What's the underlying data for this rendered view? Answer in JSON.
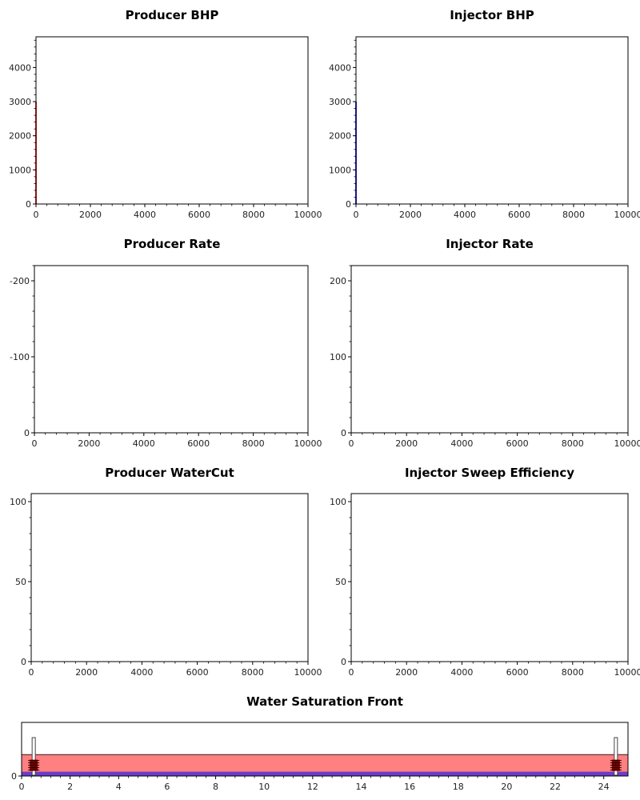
{
  "chart_data": [
    {
      "type": "line",
      "title": "Producer BHP",
      "xlim": [
        0,
        10000
      ],
      "ylim": [
        0,
        4900
      ],
      "xticks": [
        0,
        2000,
        4000,
        6000,
        8000,
        10000
      ],
      "xtick_labels": [
        "0",
        "2000",
        "4000",
        "6000",
        "8000",
        "10000"
      ],
      "yticks": [
        0,
        1000,
        2000,
        3000,
        4000
      ],
      "ytick_labels": [
        "0",
        "1000",
        "2000",
        "3000",
        "4000"
      ],
      "series": [
        {
          "color": "#ff0000",
          "x": [
            0,
            0
          ],
          "y": [
            0,
            3000
          ]
        }
      ]
    },
    {
      "type": "line",
      "title": "Injector BHP",
      "xlim": [
        0,
        10000
      ],
      "ylim": [
        0,
        4900
      ],
      "xticks": [
        0,
        2000,
        4000,
        6000,
        8000,
        10000
      ],
      "xtick_labels": [
        "0",
        "2000",
        "4000",
        "6000",
        "8000",
        "10000"
      ],
      "yticks": [
        0,
        1000,
        2000,
        3000,
        4000
      ],
      "ytick_labels": [
        "0",
        "1000",
        "2000",
        "3000",
        "4000"
      ],
      "series": [
        {
          "color": "#0000ff",
          "x": [
            0,
            0
          ],
          "y": [
            0,
            3000
          ]
        }
      ]
    },
    {
      "type": "line",
      "title": "Producer Rate",
      "xlim": [
        0,
        10000
      ],
      "ylim": [
        0,
        -220
      ],
      "xticks": [
        0,
        2000,
        4000,
        6000,
        8000,
        10000
      ],
      "xtick_labels": [
        "0",
        "2000",
        "4000",
        "6000",
        "8000",
        "10000"
      ],
      "yticks": [
        0,
        -100,
        -200
      ],
      "ytick_labels": [
        "0",
        "-100",
        "-200"
      ],
      "series": []
    },
    {
      "type": "line",
      "title": "Injector Rate",
      "xlim": [
        0,
        10000
      ],
      "ylim": [
        0,
        220
      ],
      "xticks": [
        0,
        2000,
        4000,
        6000,
        8000,
        10000
      ],
      "xtick_labels": [
        "0",
        "2000",
        "4000",
        "6000",
        "8000",
        "10000"
      ],
      "yticks": [
        0,
        100,
        200
      ],
      "ytick_labels": [
        "0",
        "100",
        "200"
      ],
      "series": []
    },
    {
      "type": "line",
      "title": "Producer WaterCut",
      "xlim": [
        0,
        10000
      ],
      "ylim": [
        0,
        105
      ],
      "xticks": [
        0,
        2000,
        4000,
        6000,
        8000,
        10000
      ],
      "xtick_labels": [
        "0",
        "2000",
        "4000",
        "6000",
        "8000",
        "10000"
      ],
      "yticks": [
        0,
        50,
        100
      ],
      "ytick_labels": [
        "0",
        "50",
        "100"
      ],
      "series": []
    },
    {
      "type": "line",
      "title": "Injector Sweep Efficiency",
      "xlim": [
        0,
        10000
      ],
      "ylim": [
        0,
        105
      ],
      "xticks": [
        0,
        2000,
        4000,
        6000,
        8000,
        10000
      ],
      "xtick_labels": [
        "0",
        "2000",
        "4000",
        "6000",
        "8000",
        "10000"
      ],
      "yticks": [
        0,
        50,
        100
      ],
      "ytick_labels": [
        "0",
        "50",
        "100"
      ],
      "series": []
    },
    {
      "type": "area",
      "title": "Water Saturation Front",
      "xlim": [
        0,
        25
      ],
      "ylim": [
        0,
        1
      ],
      "xticks": [
        0,
        2,
        4,
        6,
        8,
        10,
        12,
        14,
        16,
        18,
        20,
        22,
        24
      ],
      "xtick_labels": [
        "0",
        "2",
        "4",
        "6",
        "8",
        "10",
        "12",
        "14",
        "16",
        "18",
        "20",
        "22",
        "24"
      ],
      "yticks": [
        0
      ],
      "ytick_labels": [
        "0"
      ],
      "reservoir_band": {
        "y_from": 0,
        "y_to": 0.4,
        "color": "#ff8080"
      },
      "water_band": {
        "y_from": 0,
        "y_to": 0.08,
        "color": "#6a3cc8"
      },
      "wells": [
        {
          "name": "producer",
          "x": 0.5
        },
        {
          "name": "injector",
          "x": 24.5
        }
      ]
    }
  ]
}
